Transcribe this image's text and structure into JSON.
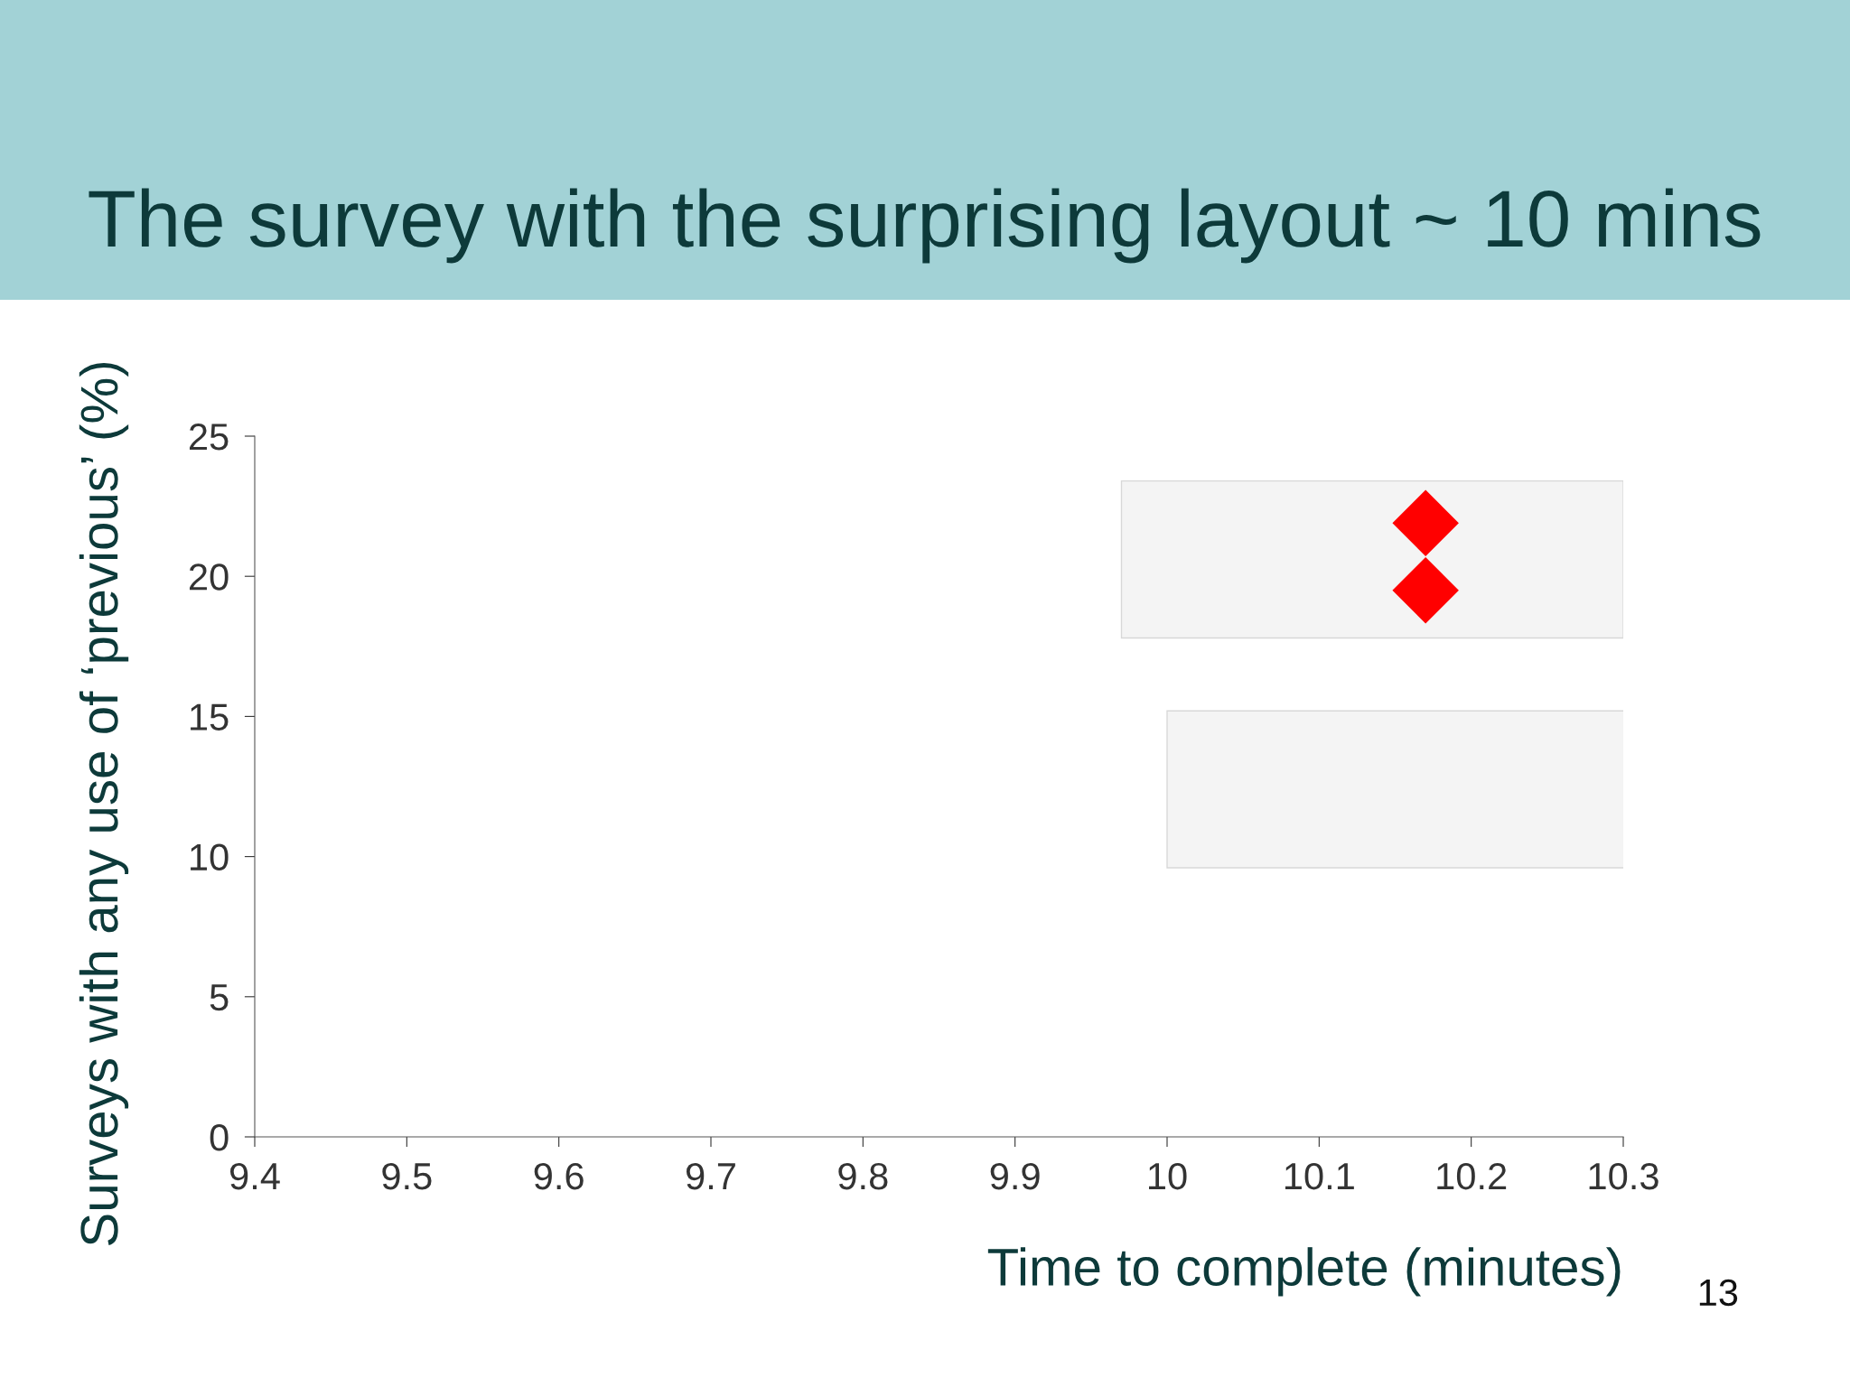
{
  "chart_data": {
    "type": "scatter",
    "title": "The survey with the surprising layout ~ 10 mins",
    "xlabel": "Time to complete (minutes)",
    "ylabel": "Surveys with any use of ‘previous’ (%)",
    "x": [
      10.17,
      10.17
    ],
    "values": [
      21.9,
      19.5
    ],
    "color": "#ff0000",
    "marker": "diamond",
    "xlim": [
      9.4,
      10.3
    ],
    "xticks": [
      9.4,
      9.5,
      9.6,
      9.7,
      9.8,
      9.9,
      10,
      10.1,
      10.2,
      10.3
    ],
    "ylim": [
      0,
      25
    ],
    "yticks": [
      0,
      5,
      10,
      15,
      20,
      25
    ],
    "grid": false,
    "legend": false,
    "annotations": [
      "13"
    ]
  }
}
